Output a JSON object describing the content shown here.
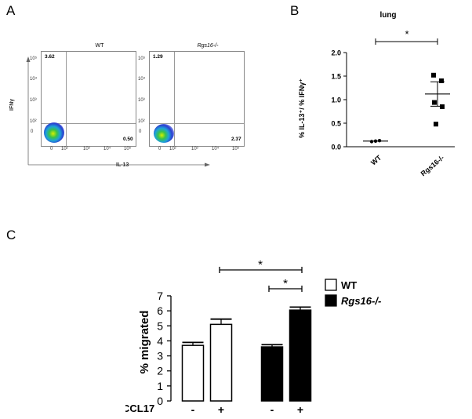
{
  "panels": {
    "a": "A",
    "b": "B",
    "c": "C"
  },
  "flow": {
    "ylabel": "IFNγ",
    "xlabel": "IL-13",
    "y_ticks": [
      "10⁵",
      "10⁴",
      "10³",
      "10²",
      "0"
    ],
    "x_ticks": [
      "0",
      "10²",
      "10³",
      "10⁴",
      "10⁵"
    ],
    "plots": [
      {
        "title": "WT",
        "upper_left": "3.62",
        "lower_right": "0.50"
      },
      {
        "title": "Rgs16-/-",
        "upper_left": "1.29",
        "lower_right": "2.37"
      }
    ]
  },
  "chart_data": [
    {
      "type": "scatter",
      "title": "lung",
      "ylabel": "% IL-13⁺/ % IFNγ⁺",
      "ylim": [
        0,
        2.0
      ],
      "yticks": [
        "0.0",
        "0.5",
        "1.0",
        "1.5",
        "2.0"
      ],
      "categories": [
        "WT",
        "Rgs16-/-"
      ],
      "points": [
        [
          0.11,
          0.12,
          0.13
        ],
        [
          1.52,
          1.4,
          0.94,
          0.85,
          0.48
        ]
      ],
      "means": [
        0.12,
        1.12
      ],
      "sems": [
        0.01,
        0.26
      ],
      "significance": "*"
    },
    {
      "type": "bar",
      "ylabel": "% migrated",
      "ylim": [
        0,
        7
      ],
      "yticks": [
        "0",
        "1",
        "2",
        "3",
        "4",
        "5",
        "6",
        "7"
      ],
      "xlabel": "CCL17",
      "conditions": [
        "-",
        "+",
        "-",
        "+"
      ],
      "series": [
        {
          "name": "WT",
          "values": [
            3.7,
            5.1
          ],
          "errors": [
            0.2,
            0.35
          ],
          "color": "#ffffff"
        },
        {
          "name": "Rgs16-/-",
          "values": [
            3.6,
            6.05
          ],
          "errors": [
            0.15,
            0.2
          ],
          "color": "#000000"
        }
      ],
      "significance": [
        "*",
        "*"
      ]
    }
  ]
}
